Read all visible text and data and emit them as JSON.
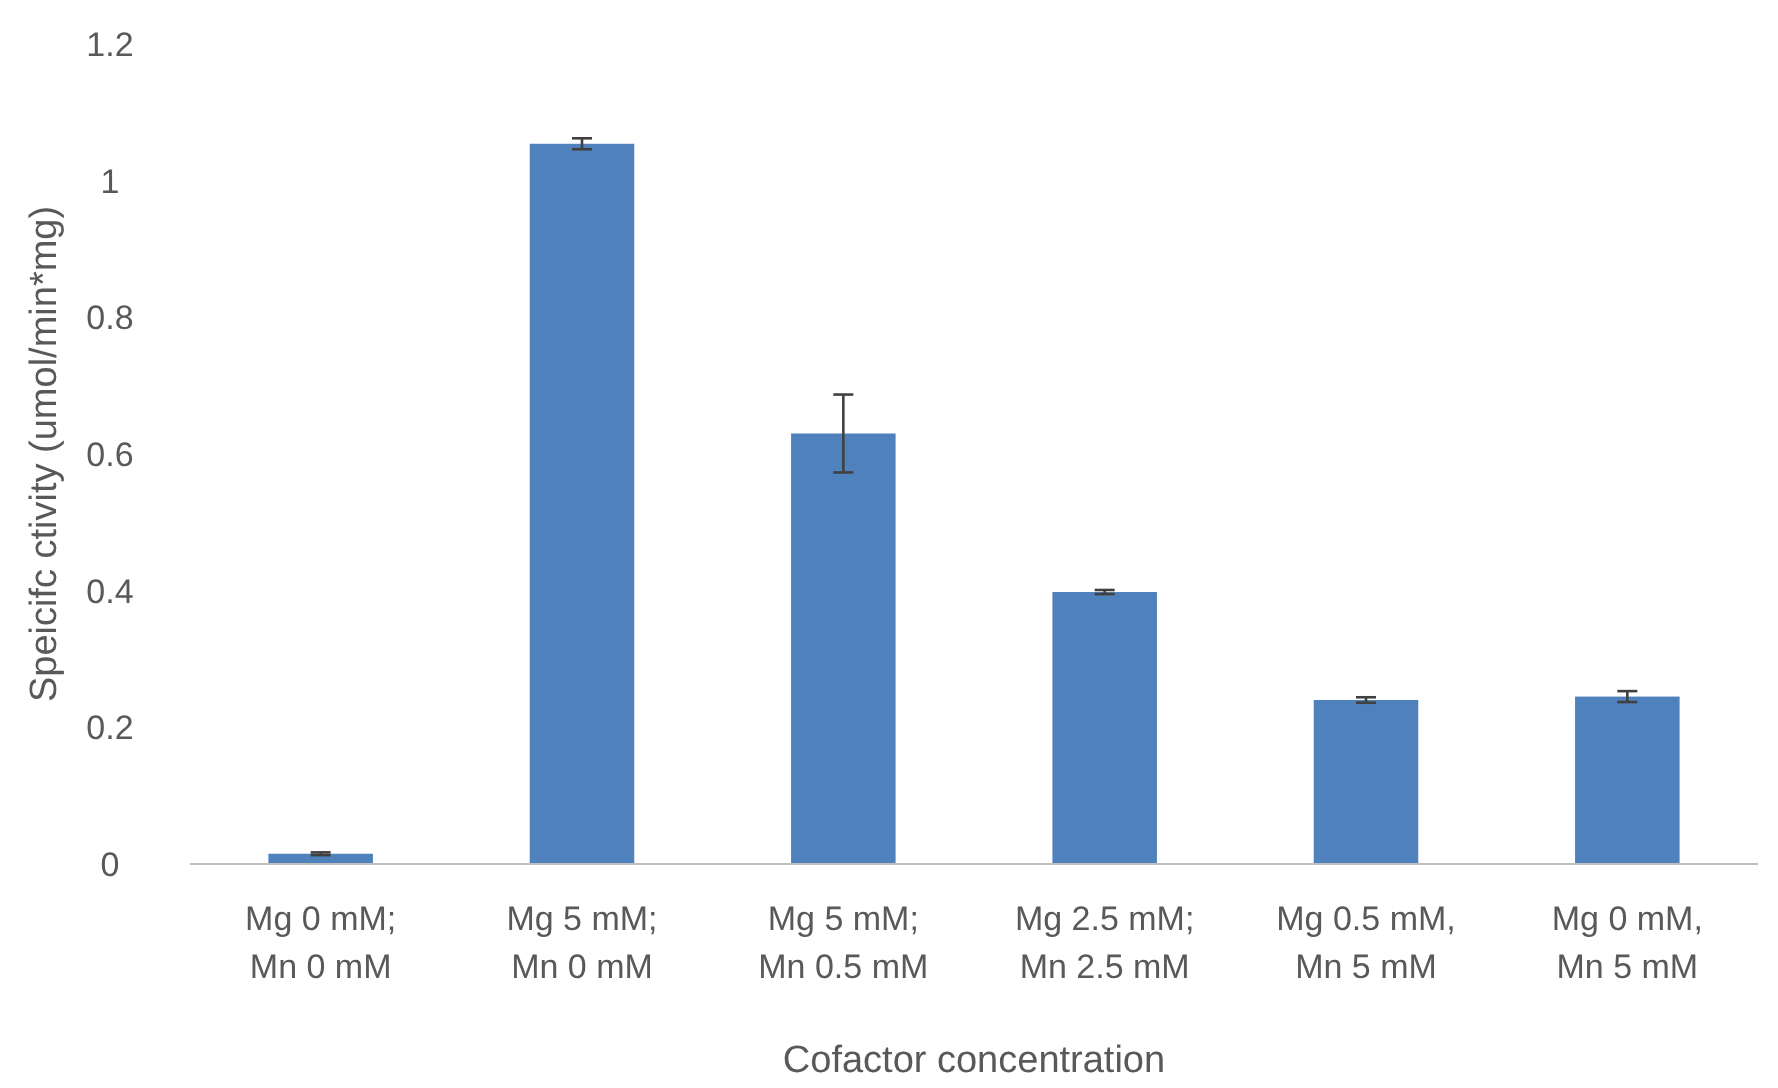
{
  "chart_data": {
    "type": "bar",
    "xlabel": "Cofactor concentration",
    "ylabel": "Speicifc ctivity (umol/min*mg)",
    "categories": [
      "Mg 0 mM;\nMn 0 mM",
      "Mg 5 mM;\nMn 0 mM",
      "Mg 5 mM;\nMn 0.5 mM",
      "Mg 2.5 mM;\nMn 2.5 mM",
      "Mg 0.5 mM,\nMn 5 mM",
      "Mg 0 mM,\nMn 5 mM"
    ],
    "values": [
      0.015,
      1.054,
      0.63,
      0.398,
      0.24,
      0.245
    ],
    "errors": [
      0.002,
      0.008,
      0.057,
      0.003,
      0.004,
      0.008
    ],
    "color": "#4f81bd",
    "ylim": [
      0,
      1.2
    ],
    "yticks": [
      0,
      {
        "value": 0.2,
        "label": "0.2"
      },
      {
        "value": 0.4,
        "label": "0.4"
      },
      {
        "value": 0.6,
        "label": "0.6"
      },
      {
        "value": 0.8,
        "label": "0.8"
      },
      1,
      {
        "value": 1.2,
        "label": "1.2"
      }
    ],
    "grid": false
  }
}
